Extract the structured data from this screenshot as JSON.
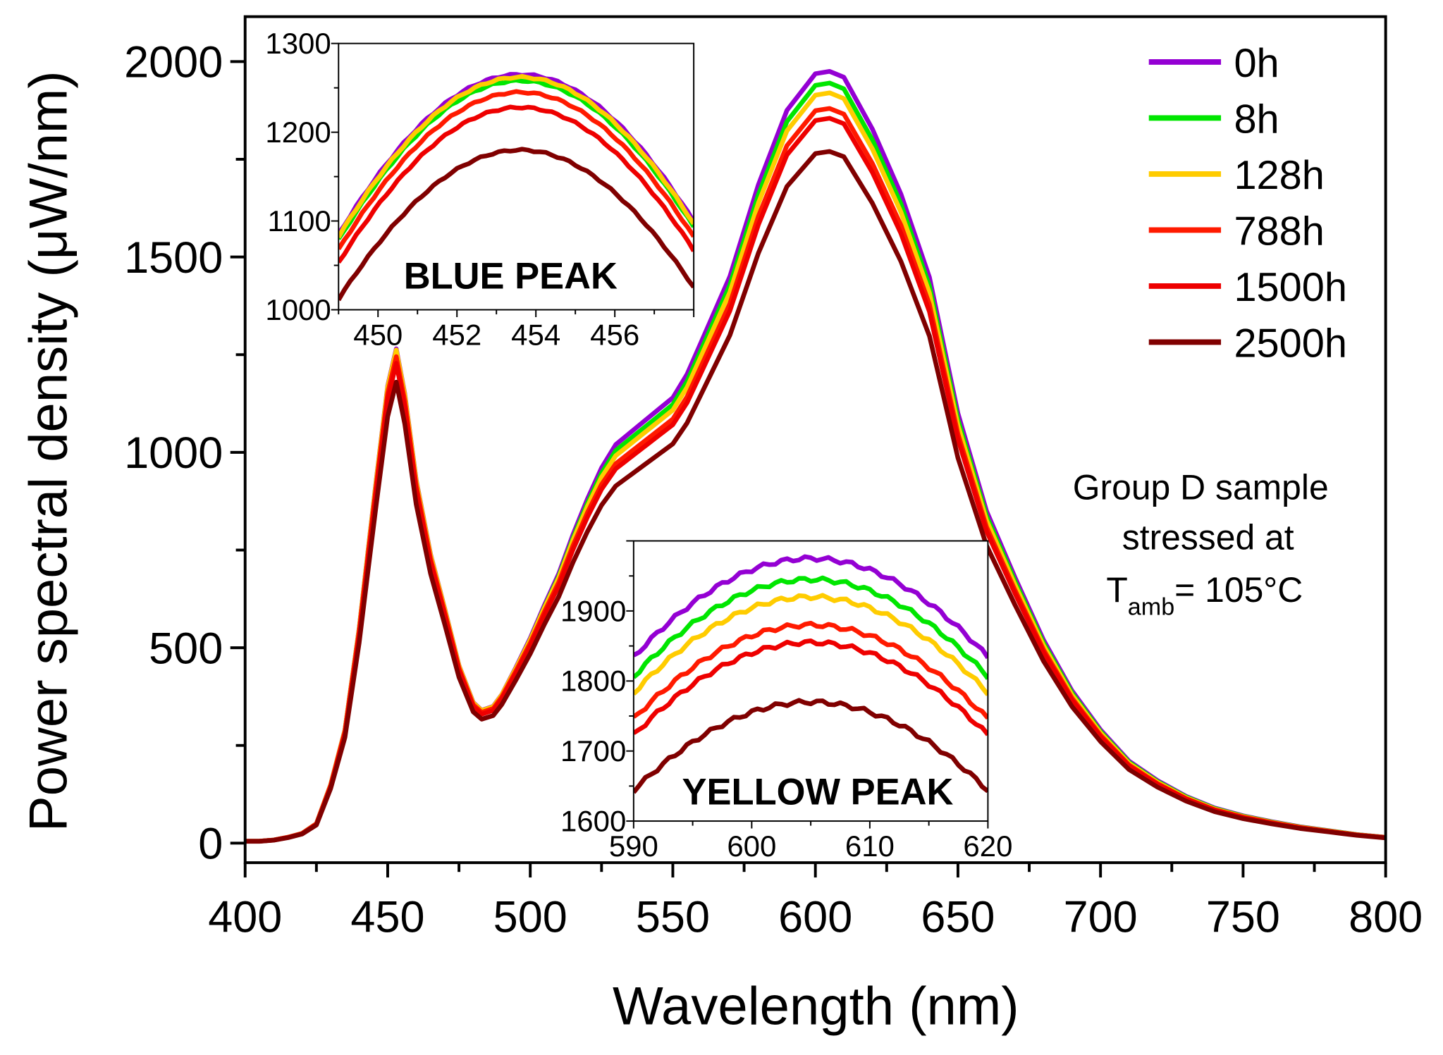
{
  "chart_data": {
    "type": "line",
    "xlabel": "Wavelength (nm)",
    "ylabel": "Power spectral density (μW/nm)",
    "xlim": [
      400,
      800
    ],
    "ylim": [
      -50,
      2115
    ],
    "xticks": [
      400,
      450,
      500,
      550,
      600,
      650,
      700,
      750,
      800
    ],
    "yticks": [
      0,
      500,
      1000,
      1500,
      2000
    ],
    "grid": false,
    "legend_position": "top-right",
    "x": [
      400,
      405,
      410,
      415,
      420,
      425,
      430,
      435,
      440,
      443,
      446,
      450,
      453,
      456,
      460,
      465,
      470,
      475,
      480,
      483,
      487,
      490,
      495,
      500,
      505,
      510,
      515,
      520,
      525,
      530,
      535,
      540,
      545,
      550,
      555,
      560,
      570,
      580,
      590,
      600,
      605,
      610,
      620,
      630,
      640,
      650,
      660,
      670,
      680,
      690,
      700,
      710,
      720,
      730,
      740,
      750,
      760,
      770,
      780,
      790,
      800
    ],
    "reference_values_0h": [
      5,
      5,
      8,
      15,
      25,
      50,
      150,
      290,
      550,
      740,
      930,
      1170,
      1265,
      1150,
      930,
      740,
      600,
      455,
      360,
      340,
      350,
      380,
      450,
      525,
      610,
      690,
      790,
      880,
      960,
      1020,
      1050,
      1080,
      1110,
      1140,
      1200,
      1283,
      1450,
      1685,
      1875,
      1969,
      1975,
      1960,
      1827,
      1661,
      1448,
      1100,
      850,
      680,
      520,
      390,
      290,
      210,
      160,
      120,
      90,
      70,
      55,
      42,
      32,
      22,
      15
    ],
    "series": [
      {
        "name": "0h",
        "color": "#9400d3",
        "blue_peak": 1265,
        "yellow_peak": 1975
      },
      {
        "name": "8h",
        "color": "#00e600",
        "blue_peak": 1258,
        "yellow_peak": 1945
      },
      {
        "name": "128h",
        "color": "#ffcc00",
        "blue_peak": 1262,
        "yellow_peak": 1920
      },
      {
        "name": "788h",
        "color": "#ff1a00",
        "blue_peak": 1245,
        "yellow_peak": 1880
      },
      {
        "name": "1500h",
        "color": "#ee0000",
        "blue_peak": 1228,
        "yellow_peak": 1855
      },
      {
        "name": "2500h",
        "color": "#800000",
        "blue_peak": 1180,
        "yellow_peak": 1770
      }
    ],
    "annotation": {
      "line1": "Group D sample",
      "line2": "stressed at",
      "t": "T",
      "sub": "amb",
      "rest": "= 105°C"
    },
    "insets": [
      {
        "title": "BLUE PEAK",
        "xlim": [
          449,
          458
        ],
        "ylim": [
          1000,
          1300
        ],
        "xticks": [
          450,
          452,
          454,
          456
        ],
        "yticks": [
          1000,
          1100,
          1200,
          1300
        ],
        "peak_wavelength": 453.6,
        "peak_key": "blue_peak"
      },
      {
        "title": "YELLOW PEAK",
        "xlim": [
          590,
          620
        ],
        "ylim": [
          1600,
          2000
        ],
        "xticks": [
          590,
          600,
          610,
          620
        ],
        "yticks": [
          1600,
          1700,
          1800,
          1900
        ],
        "peak_wavelength": 605,
        "peak_key": "yellow_peak"
      }
    ]
  }
}
